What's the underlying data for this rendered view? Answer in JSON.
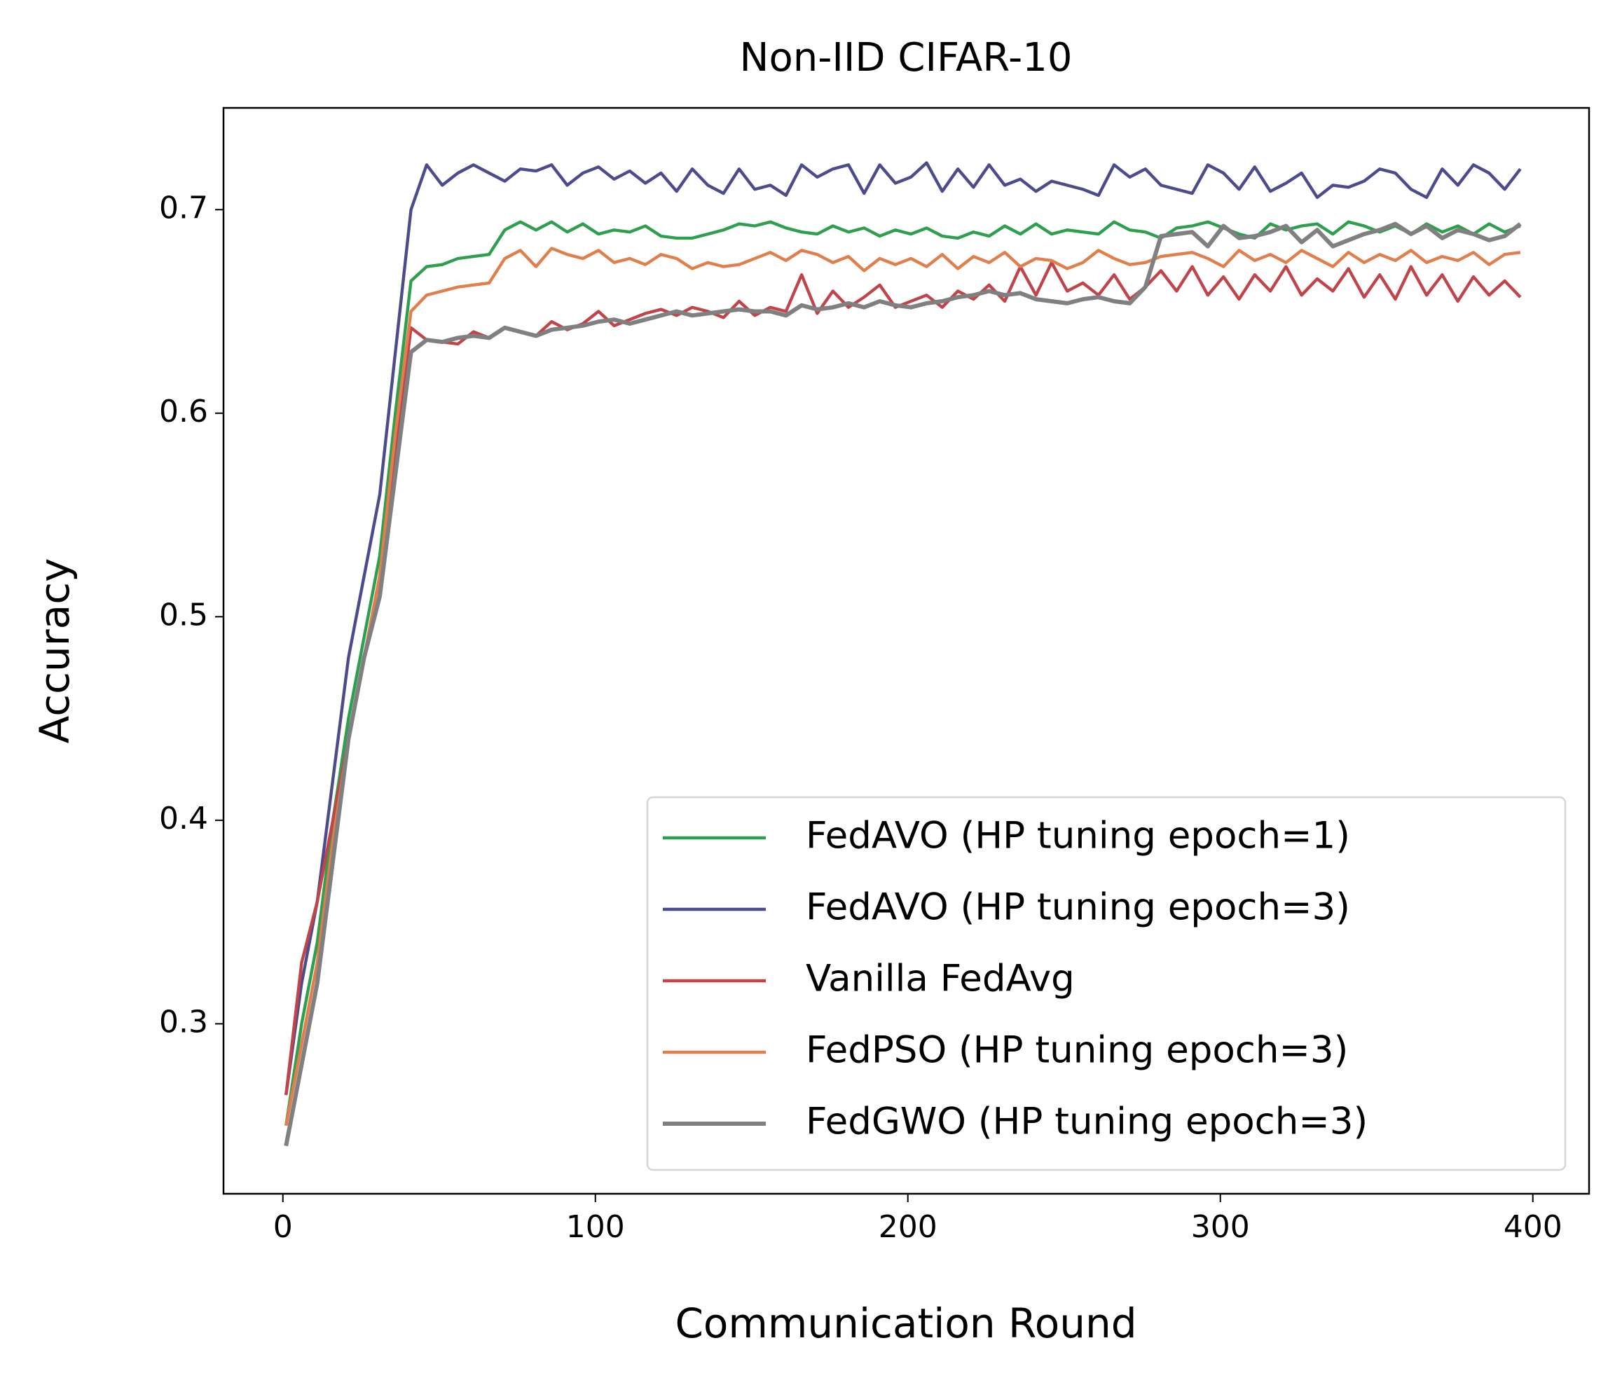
{
  "chart_data": {
    "type": "line",
    "title": "Non-IID CIFAR-10",
    "xlabel": "Communication Round",
    "ylabel": "Accuracy",
    "xlim": [
      -19,
      418
    ],
    "ylim": [
      0.2165,
      0.75
    ],
    "xticks": [
      0,
      100,
      200,
      300,
      400
    ],
    "yticks": [
      0.3,
      0.4,
      0.5,
      0.6,
      0.7
    ],
    "grid": false,
    "legend": "lower right",
    "x": [
      1,
      6,
      11,
      16,
      21,
      26,
      31,
      36,
      41,
      46,
      51,
      56,
      61,
      66,
      71,
      76,
      81,
      86,
      91,
      96,
      101,
      106,
      111,
      116,
      121,
      126,
      131,
      136,
      141,
      146,
      151,
      156,
      161,
      166,
      171,
      176,
      181,
      186,
      191,
      196,
      201,
      206,
      211,
      216,
      221,
      226,
      231,
      236,
      241,
      246,
      251,
      256,
      261,
      266,
      271,
      276,
      281,
      286,
      291,
      296,
      301,
      306,
      311,
      316,
      321,
      326,
      331,
      336,
      341,
      346,
      351,
      356,
      361,
      366,
      371,
      376,
      381,
      386,
      391,
      396
    ],
    "series": [
      {
        "name": "FedAVO (HP tuning epoch=1)",
        "color": "#2e9e4f",
        "values": [
          0.25,
          0.3,
          0.34,
          0.4,
          0.45,
          0.49,
          0.53,
          0.6,
          0.665,
          0.672,
          0.673,
          0.676,
          0.677,
          0.678,
          0.69,
          0.694,
          0.69,
          0.694,
          0.689,
          0.693,
          0.688,
          0.69,
          0.689,
          0.692,
          0.687,
          0.686,
          0.686,
          0.688,
          0.69,
          0.693,
          0.692,
          0.694,
          0.691,
          0.689,
          0.688,
          0.692,
          0.689,
          0.691,
          0.687,
          0.69,
          0.688,
          0.691,
          0.687,
          0.686,
          0.689,
          0.687,
          0.692,
          0.688,
          0.693,
          0.688,
          0.69,
          0.689,
          0.688,
          0.694,
          0.69,
          0.689,
          0.686,
          0.691,
          0.692,
          0.694,
          0.691,
          0.688,
          0.686,
          0.693,
          0.69,
          0.692,
          0.693,
          0.688,
          0.694,
          0.692,
          0.689,
          0.692,
          0.688,
          0.693,
          0.689,
          0.692,
          0.688,
          0.693,
          0.689,
          0.692
        ]
      },
      {
        "name": "FedAVO (HP tuning epoch=3)",
        "color": "#4e4b8c",
        "values": [
          0.265,
          0.32,
          0.36,
          0.42,
          0.48,
          0.52,
          0.56,
          0.63,
          0.7,
          0.722,
          0.712,
          0.718,
          0.722,
          0.718,
          0.714,
          0.72,
          0.719,
          0.722,
          0.712,
          0.718,
          0.721,
          0.715,
          0.719,
          0.713,
          0.718,
          0.709,
          0.72,
          0.712,
          0.708,
          0.72,
          0.71,
          0.712,
          0.707,
          0.722,
          0.716,
          0.72,
          0.722,
          0.708,
          0.722,
          0.713,
          0.716,
          0.723,
          0.709,
          0.72,
          0.711,
          0.722,
          0.712,
          0.715,
          0.709,
          0.714,
          0.712,
          0.71,
          0.707,
          0.722,
          0.716,
          0.72,
          0.712,
          0.71,
          0.708,
          0.722,
          0.718,
          0.71,
          0.721,
          0.709,
          0.713,
          0.718,
          0.706,
          0.712,
          0.711,
          0.714,
          0.72,
          0.718,
          0.71,
          0.706,
          0.72,
          0.712,
          0.722,
          0.718,
          0.71,
          0.72
        ]
      },
      {
        "name": "Vanilla FedAvg",
        "color": "#c0454a",
        "values": [
          0.265,
          0.33,
          0.36,
          0.4,
          0.44,
          0.48,
          0.52,
          0.58,
          0.642,
          0.636,
          0.635,
          0.634,
          0.64,
          0.637,
          0.642,
          0.64,
          0.638,
          0.645,
          0.641,
          0.644,
          0.65,
          0.643,
          0.646,
          0.649,
          0.651,
          0.648,
          0.652,
          0.65,
          0.647,
          0.655,
          0.648,
          0.652,
          0.65,
          0.668,
          0.649,
          0.66,
          0.652,
          0.657,
          0.663,
          0.652,
          0.655,
          0.658,
          0.652,
          0.66,
          0.656,
          0.663,
          0.655,
          0.672,
          0.658,
          0.674,
          0.66,
          0.664,
          0.658,
          0.668,
          0.656,
          0.662,
          0.67,
          0.66,
          0.672,
          0.658,
          0.667,
          0.656,
          0.668,
          0.66,
          0.672,
          0.658,
          0.666,
          0.66,
          0.671,
          0.657,
          0.668,
          0.656,
          0.672,
          0.658,
          0.668,
          0.655,
          0.667,
          0.658,
          0.665,
          0.657
        ]
      },
      {
        "name": "FedPSO (HP tuning epoch=3)",
        "color": "#e07f4c",
        "values": [
          0.25,
          0.29,
          0.33,
          0.39,
          0.44,
          0.48,
          0.52,
          0.59,
          0.65,
          0.658,
          0.66,
          0.662,
          0.663,
          0.664,
          0.676,
          0.68,
          0.672,
          0.681,
          0.678,
          0.676,
          0.68,
          0.674,
          0.676,
          0.673,
          0.678,
          0.676,
          0.671,
          0.674,
          0.672,
          0.673,
          0.676,
          0.679,
          0.675,
          0.68,
          0.678,
          0.674,
          0.677,
          0.67,
          0.676,
          0.673,
          0.676,
          0.672,
          0.678,
          0.671,
          0.677,
          0.674,
          0.679,
          0.672,
          0.676,
          0.675,
          0.671,
          0.674,
          0.68,
          0.676,
          0.673,
          0.674,
          0.677,
          0.678,
          0.679,
          0.676,
          0.672,
          0.68,
          0.675,
          0.678,
          0.674,
          0.68,
          0.676,
          0.672,
          0.679,
          0.674,
          0.678,
          0.675,
          0.68,
          0.674,
          0.677,
          0.675,
          0.679,
          0.673,
          0.678,
          0.679
        ]
      },
      {
        "name": "FedGWO (HP tuning epoch=3)",
        "color": "#808080",
        "values": [
          0.24,
          0.28,
          0.32,
          0.38,
          0.44,
          0.48,
          0.51,
          0.57,
          0.63,
          0.636,
          0.635,
          0.637,
          0.638,
          0.637,
          0.642,
          0.64,
          0.638,
          0.641,
          0.642,
          0.643,
          0.645,
          0.646,
          0.644,
          0.646,
          0.648,
          0.65,
          0.648,
          0.649,
          0.65,
          0.651,
          0.65,
          0.65,
          0.648,
          0.653,
          0.651,
          0.652,
          0.654,
          0.652,
          0.655,
          0.653,
          0.652,
          0.654,
          0.655,
          0.657,
          0.658,
          0.66,
          0.658,
          0.659,
          0.656,
          0.655,
          0.654,
          0.656,
          0.657,
          0.655,
          0.654,
          0.662,
          0.687,
          0.688,
          0.689,
          0.682,
          0.692,
          0.686,
          0.687,
          0.689,
          0.692,
          0.684,
          0.69,
          0.682,
          0.685,
          0.688,
          0.69,
          0.693,
          0.688,
          0.692,
          0.686,
          0.69,
          0.688,
          0.685,
          0.687,
          0.693
        ]
      }
    ]
  }
}
